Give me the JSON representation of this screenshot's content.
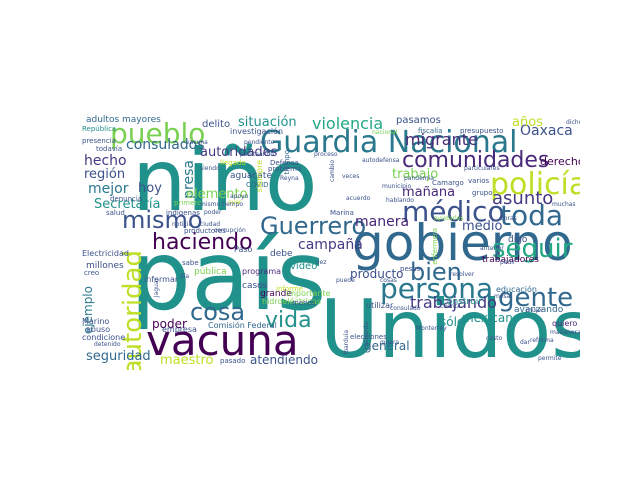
{
  "words": [
    {
      "text": "niño",
      "color": "#21918c"
    },
    {
      "text": "país",
      "color": "#21918c"
    },
    {
      "text": "gobierno",
      "color": "#31688e"
    },
    {
      "text": "Unidos",
      "color": "#21918c"
    },
    {
      "text": "vacuna",
      "color": "#440154"
    },
    {
      "text": "Guardia Nacional",
      "color": "#2a788e"
    },
    {
      "text": "pueblo",
      "color": "#7ad151"
    },
    {
      "text": "policía",
      "color": "#bddf26"
    },
    {
      "text": "comunidades",
      "color": "#482878"
    },
    {
      "text": "médico",
      "color": "#3b528b"
    },
    {
      "text": "toda",
      "color": "#31688e"
    },
    {
      "text": "haciendo",
      "color": "#440154"
    },
    {
      "text": "persona",
      "color": "#2a788e"
    },
    {
      "text": "seguir",
      "color": "#22a884"
    },
    {
      "text": "bien",
      "color": "#31688e"
    },
    {
      "text": "gente",
      "color": "#31688e"
    },
    {
      "text": "Guerrero",
      "color": "#31688e"
    },
    {
      "text": "mismo",
      "color": "#3b528b"
    },
    {
      "text": "autoridad",
      "color": "#bddf26"
    },
    {
      "text": "cosa",
      "color": "#31688e"
    },
    {
      "text": "vida",
      "color": "#21918c"
    },
    {
      "text": "asunto",
      "color": "#443983"
    },
    {
      "text": "trabajando",
      "color": "#443983"
    },
    {
      "text": "migrante",
      "color": "#482878"
    },
    {
      "text": "violencia",
      "color": "#22a884"
    },
    {
      "text": "situación",
      "color": "#21918c"
    },
    {
      "text": "hecho",
      "color": "#443983"
    },
    {
      "text": "consulados",
      "color": "#31688e"
    },
    {
      "text": "autoridades",
      "color": "#443983"
    },
    {
      "text": "región",
      "color": "#3b528b"
    },
    {
      "text": "mejor",
      "color": "#2a788e"
    },
    {
      "text": "hoy",
      "color": "#3b528b"
    },
    {
      "text": "presa",
      "color": "#2a788e"
    },
    {
      "text": "elemento",
      "color": "#7ad151"
    },
    {
      "text": "Secretaría",
      "color": "#21918c"
    },
    {
      "text": "campaña",
      "color": "#443983"
    },
    {
      "text": "manera",
      "color": "#482878"
    },
    {
      "text": "medio",
      "color": "#3b528b"
    },
    {
      "text": "mañana",
      "color": "#482878"
    },
    {
      "text": "trabajo",
      "color": "#7ad151"
    },
    {
      "text": "Oaxaca",
      "color": "#3b528b"
    },
    {
      "text": "años",
      "color": "#bddf26"
    },
    {
      "text": "derecho",
      "color": "#440154"
    },
    {
      "text": "poder",
      "color": "#440154"
    },
    {
      "text": "seguridad",
      "color": "#31688e"
    },
    {
      "text": "maestro",
      "color": "#bddf26"
    },
    {
      "text": "atendiendo",
      "color": "#3b528b"
    },
    {
      "text": "producto",
      "color": "#3b528b"
    },
    {
      "text": "general",
      "color": "#31688e"
    },
    {
      "text": "sólo",
      "color": "#21918c"
    },
    {
      "text": "mexicano",
      "color": "#21918c"
    },
    {
      "text": "ejemplo",
      "color": "#2a788e"
    },
    {
      "text": "adultos mayores",
      "color": "#31688e"
    },
    {
      "text": "delito",
      "color": "#3b528b"
    },
    {
      "text": "pasamos",
      "color": "#3b528b"
    },
    {
      "text": "investigación",
      "color": "#3b528b"
    },
    {
      "text": "aguacate",
      "color": "#3b528b"
    },
    {
      "text": "COVID",
      "color": "#31688e"
    },
    {
      "text": "tiempo",
      "color": "#31688e"
    },
    {
      "text": "millones",
      "color": "#3b528b"
    },
    {
      "text": "Electricidad",
      "color": "#3b528b"
    },
    {
      "text": "pública",
      "color": "#7ad151"
    },
    {
      "text": "programa",
      "color": "#482878"
    },
    {
      "text": "casos",
      "color": "#3b528b"
    },
    {
      "text": "grande",
      "color": "#440154"
    },
    {
      "text": "importante",
      "color": "#7ad151"
    },
    {
      "text": "video",
      "color": "#21918c"
    },
    {
      "text": "debe",
      "color": "#3b528b"
    },
    {
      "text": "Comisión Federal",
      "color": "#31688e"
    },
    {
      "text": "empresa",
      "color": "#3b528b"
    },
    {
      "text": "hidroeléctricas",
      "color": "#7ad151"
    },
    {
      "text": "construir",
      "color": "#21918c"
    },
    {
      "text": "educación",
      "color": "#31688e"
    },
    {
      "text": "trabajadores",
      "color": "#440154"
    },
    {
      "text": "avanzando",
      "color": "#31688e"
    },
    {
      "text": "quiero",
      "color": "#482878"
    },
    {
      "text": "digo",
      "color": "#3b528b"
    },
    {
      "text": "abuso",
      "color": "#3b528b"
    },
    {
      "text": "Marino",
      "color": "#3b528b"
    },
    {
      "text": "condicione",
      "color": "#3b528b"
    },
    {
      "text": "República",
      "color": "#21918c"
    },
    {
      "text": "presencia",
      "color": "#3b528b"
    },
    {
      "text": "todavía",
      "color": "#3b528b"
    },
    {
      "text": "fiscalía",
      "color": "#31688e"
    },
    {
      "text": "presupuesto",
      "color": "#3b528b"
    },
    {
      "text": "Marina",
      "color": "#3b528b"
    },
    {
      "text": "elecciones",
      "color": "#3b528b"
    },
    {
      "text": "Defensa",
      "color": "#3b528b"
    },
    {
      "text": "pendiente",
      "color": "#3b528b"
    },
    {
      "text": "problema",
      "color": "#3b528b"
    },
    {
      "text": "Camargo",
      "color": "#3b528b"
    },
    {
      "text": "varios",
      "color": "#3b528b"
    },
    {
      "text": "grupo",
      "color": "#3b528b"
    },
    {
      "text": "pasado",
      "color": "#3b528b"
    },
    {
      "text": "permite",
      "color": "#3b528b"
    },
    {
      "text": "informar",
      "color": "#3b528b"
    },
    {
      "text": "utilizar",
      "color": "#3b528b"
    },
    {
      "text": "Paso",
      "color": "#3b528b"
    },
    {
      "text": "sabe",
      "color": "#3b528b"
    },
    {
      "text": "denuncia",
      "color": "#3b528b"
    },
    {
      "text": "salud",
      "color": "#3b528b"
    },
    {
      "text": "creo",
      "color": "#3b528b"
    },
    {
      "text": "menos",
      "color": "#3b528b"
    },
    {
      "text": "informe",
      "color": "#bddf26"
    },
    {
      "text": "pesos",
      "color": "#3b528b"
    },
    {
      "text": "Jaguar",
      "color": "#3b528b"
    },
    {
      "text": "mujer",
      "color": "#3b528b"
    },
    {
      "text": "productores",
      "color": "#3b528b"
    },
    {
      "text": "planteando",
      "color": "#3b528b"
    },
    {
      "text": "llegado",
      "color": "#bddf26"
    },
    {
      "text": "ayer",
      "color": "#bddf26"
    },
    {
      "text": "apoyo",
      "color": "#3b528b"
    },
    {
      "text": "ciudad",
      "color": "#3b528b"
    },
    {
      "text": "poder",
      "color": "#3b528b"
    },
    {
      "text": "día",
      "color": "#3b528b"
    },
    {
      "text": "Reyna",
      "color": "#3b528b"
    },
    {
      "text": "proceso",
      "color": "#3b528b"
    },
    {
      "text": "veces",
      "color": "#3b528b"
    },
    {
      "text": "dicho",
      "color": "#3b528b"
    },
    {
      "text": "reforma",
      "color": "#3b528b"
    },
    {
      "text": "detenido",
      "color": "#3b528b"
    },
    {
      "text": "quiera",
      "color": "#3b528b"
    },
    {
      "text": "Ibarduia",
      "color": "#3b528b"
    },
    {
      "text": "muchas",
      "color": "#3b528b"
    },
    {
      "text": "mesa",
      "color": "#3b528b"
    },
    {
      "text": "corrupción",
      "color": "#3b528b"
    },
    {
      "text": "municipio",
      "color": "#3b528b"
    },
    {
      "text": "hablando",
      "color": "#3b528b"
    },
    {
      "text": "ayudarles",
      "color": "#7ad151"
    },
    {
      "text": "cambio",
      "color": "#3b528b"
    },
    {
      "text": "acuerdo",
      "color": "#3b528b"
    },
    {
      "text": "pedir",
      "color": "#3b528b"
    },
    {
      "text": "primero",
      "color": "#7ad151"
    },
    {
      "text": "acuerdo",
      "color": "#3b528b"
    },
    {
      "text": "cosas",
      "color": "#3b528b"
    },
    {
      "text": "nacional",
      "color": "#7ad151"
    },
    {
      "text": "siempre",
      "color": "#bddf26"
    },
    {
      "text": "indígenas",
      "color": "#3b528b"
    },
    {
      "text": "mismo tiempo",
      "color": "#3b528b"
    },
    {
      "text": "particulares",
      "color": "#3b528b"
    },
    {
      "text": "noticia",
      "color": "#3b528b"
    },
    {
      "text": "siendo",
      "color": "#3b528b"
    },
    {
      "text": "vacuna",
      "color": "#3b528b"
    },
    {
      "text": "dar",
      "color": "#3b528b"
    },
    {
      "text": "vez",
      "color": "#3b528b"
    },
    {
      "text": "mañanera",
      "color": "#3b528b"
    },
    {
      "text": "obras",
      "color": "#3b528b"
    },
    {
      "text": "anterior",
      "color": "#3b528b"
    },
    {
      "text": "puede",
      "color": "#3b528b"
    },
    {
      "text": "costo",
      "color": "#3b528b"
    },
    {
      "text": "consulado",
      "color": "#3b528b"
    },
    {
      "text": "cuenta",
      "color": "#3b528b"
    },
    {
      "text": "resolver",
      "color": "#3b528b"
    },
    {
      "text": "autodefensa",
      "color": "#3b528b"
    },
    {
      "text": "Monterrey",
      "color": "#3b528b"
    },
    {
      "text": "enfermera",
      "color": "#7ad151"
    },
    {
      "text": "pandemia",
      "color": "#3b528b"
    }
  ]
}
